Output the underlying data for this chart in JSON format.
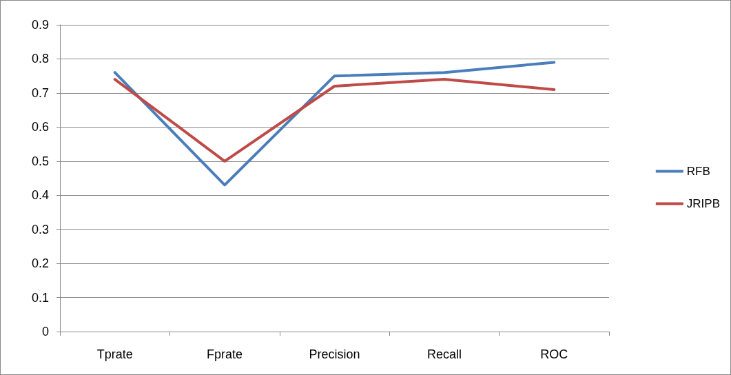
{
  "chart_data": {
    "type": "line",
    "categories": [
      "Tprate",
      "Fprate",
      "Precision",
      "Recall",
      "ROC"
    ],
    "series": [
      {
        "name": "RFB",
        "color": "#4a7ebb",
        "values": [
          0.76,
          0.43,
          0.75,
          0.76,
          0.79
        ]
      },
      {
        "name": "JRIPB",
        "color": "#be4b48",
        "values": [
          0.74,
          0.5,
          0.72,
          0.74,
          0.71
        ]
      }
    ],
    "ylim": [
      0,
      0.9
    ],
    "yticks": [
      0,
      0.1,
      0.2,
      0.3,
      0.4,
      0.5,
      0.6,
      0.7,
      0.8,
      0.9
    ],
    "grid": "y",
    "legend": "right",
    "marker": "none",
    "line_style": "solid"
  }
}
